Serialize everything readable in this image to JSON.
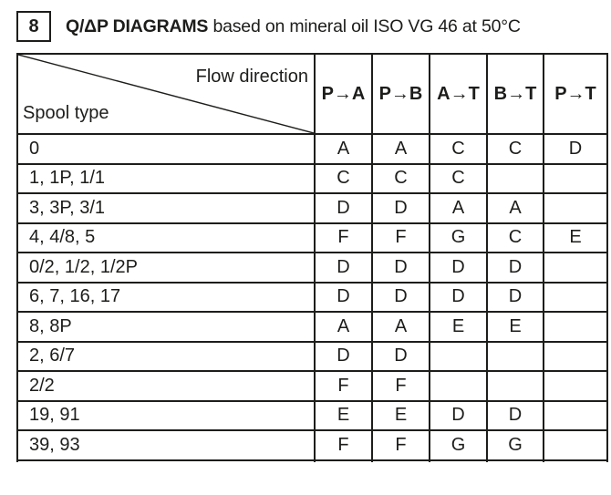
{
  "page": {
    "section_number": "8",
    "title_bold": "Q/ΔP DIAGRAMS",
    "title_regular": " based on mineral oil ISO VG 46 at 50°C"
  },
  "table": {
    "corner_top_right": "Flow direction",
    "corner_bottom_left": "Spool type",
    "flow_columns": [
      "P→A",
      "P→B",
      "A→T",
      "B→T",
      "P→T"
    ],
    "rows": [
      {
        "spool_type": "0",
        "values": [
          "A",
          "A",
          "C",
          "C",
          "D"
        ]
      },
      {
        "spool_type": "1, 1P, 1/1",
        "values": [
          "C",
          "C",
          "C",
          "",
          ""
        ]
      },
      {
        "spool_type": "3, 3P, 3/1",
        "values": [
          "D",
          "D",
          "A",
          "A",
          ""
        ]
      },
      {
        "spool_type": "4, 4/8, 5",
        "values": [
          "F",
          "F",
          "G",
          "C",
          "E"
        ]
      },
      {
        "spool_type": "0/2, 1/2, 1/2P",
        "values": [
          "D",
          "D",
          "D",
          "D",
          ""
        ]
      },
      {
        "spool_type": "6, 7, 16, 17",
        "values": [
          "D",
          "D",
          "D",
          "D",
          ""
        ]
      },
      {
        "spool_type": "8, 8P",
        "values": [
          "A",
          "A",
          "E",
          "E",
          ""
        ]
      },
      {
        "spool_type": "2, 6/7",
        "values": [
          "D",
          "D",
          "",
          "",
          ""
        ]
      },
      {
        "spool_type": "2/2",
        "values": [
          "F",
          "F",
          "",
          "",
          ""
        ]
      },
      {
        "spool_type": "19, 91",
        "values": [
          "E",
          "E",
          "D",
          "D",
          ""
        ]
      },
      {
        "spool_type": "39, 93",
        "values": [
          "F",
          "F",
          "G",
          "G",
          ""
        ]
      }
    ]
  },
  "colors": {
    "ink": "#1d1d1b",
    "background": "#ffffff"
  }
}
